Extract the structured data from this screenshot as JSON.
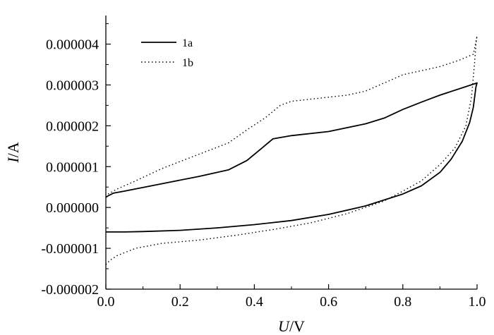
{
  "chart_data": {
    "type": "line",
    "title": "",
    "xlabel": {
      "var": "U",
      "unit": "/V"
    },
    "ylabel": {
      "var": "I",
      "unit": "/A"
    },
    "xlim": [
      0.0,
      1.0
    ],
    "ylim": [
      -2e-06,
      4.7e-06
    ],
    "xticks": [
      0.0,
      0.2,
      0.4,
      0.6,
      0.8,
      1.0
    ],
    "xtick_labels": [
      "0.0",
      "0.2",
      "0.4",
      "0.6",
      "0.8",
      "1.0"
    ],
    "yticks": [
      -2e-06,
      -1e-06,
      0.0,
      1e-06,
      2e-06,
      3e-06,
      4e-06
    ],
    "ytick_labels": [
      "-0.000002",
      "-0.000001",
      "0.000000",
      "0.000001",
      "0.000002",
      "0.000003",
      "0.000004"
    ],
    "grid": false,
    "legend_position": "top-left",
    "series": [
      {
        "name": "1a",
        "style": "solid",
        "color": "#000000",
        "points": [
          [
            0.0,
            -6e-07
          ],
          [
            0.05,
            -6e-07
          ],
          [
            0.1,
            -5.9e-07
          ],
          [
            0.2,
            -5.6e-07
          ],
          [
            0.3,
            -5e-07
          ],
          [
            0.4,
            -4.2e-07
          ],
          [
            0.5,
            -3.2e-07
          ],
          [
            0.6,
            -1.7e-07
          ],
          [
            0.7,
            4e-08
          ],
          [
            0.8,
            3.3e-07
          ],
          [
            0.85,
            5.3e-07
          ],
          [
            0.9,
            8.6e-07
          ],
          [
            0.93,
            1.18e-06
          ],
          [
            0.96,
            1.62e-06
          ],
          [
            0.98,
            2.08e-06
          ],
          [
            0.99,
            2.45e-06
          ],
          [
            0.997,
            2.95e-06
          ],
          [
            1.0,
            3.05e-06
          ],
          [
            0.9,
            2.75e-06
          ],
          [
            0.85,
            2.58e-06
          ],
          [
            0.8,
            2.4e-06
          ],
          [
            0.75,
            2.19e-06
          ],
          [
            0.7,
            2.05e-06
          ],
          [
            0.6,
            1.86e-06
          ],
          [
            0.5,
            1.76e-06
          ],
          [
            0.45,
            1.68e-06
          ],
          [
            0.42,
            1.45e-06
          ],
          [
            0.38,
            1.15e-06
          ],
          [
            0.33,
            9.2e-07
          ],
          [
            0.25,
            7.6e-07
          ],
          [
            0.15,
            5.8e-07
          ],
          [
            0.05,
            4e-07
          ],
          [
            0.02,
            3.5e-07
          ],
          [
            0.005,
            2.8e-07
          ],
          [
            0.0,
            2.5e-07
          ]
        ]
      },
      {
        "name": "1b",
        "style": "dotted",
        "color": "#000000",
        "points": [
          [
            0.0,
            -1.4e-06
          ],
          [
            0.01,
            -1.3e-06
          ],
          [
            0.03,
            -1.18e-06
          ],
          [
            0.08,
            -1e-06
          ],
          [
            0.15,
            -8.8e-07
          ],
          [
            0.25,
            -8e-07
          ],
          [
            0.35,
            -6.8e-07
          ],
          [
            0.45,
            -5.4e-07
          ],
          [
            0.55,
            -3.8e-07
          ],
          [
            0.65,
            -1.5e-07
          ],
          [
            0.75,
            1.6e-07
          ],
          [
            0.8,
            4e-07
          ],
          [
            0.85,
            6.5e-07
          ],
          [
            0.9,
            1.05e-06
          ],
          [
            0.94,
            1.45e-06
          ],
          [
            0.97,
            2e-06
          ],
          [
            0.985,
            2.7e-06
          ],
          [
            0.993,
            3.5e-06
          ],
          [
            0.998,
            4.1e-06
          ],
          [
            1.0,
            4.2e-06
          ],
          [
            0.99,
            3.75e-06
          ],
          [
            0.95,
            3.6e-06
          ],
          [
            0.9,
            3.45e-06
          ],
          [
            0.8,
            3.25e-06
          ],
          [
            0.75,
            3.05e-06
          ],
          [
            0.7,
            2.85e-06
          ],
          [
            0.65,
            2.75e-06
          ],
          [
            0.55,
            2.65e-06
          ],
          [
            0.5,
            2.6e-06
          ],
          [
            0.47,
            2.5e-06
          ],
          [
            0.43,
            2.2e-06
          ],
          [
            0.38,
            1.9e-06
          ],
          [
            0.33,
            1.58e-06
          ],
          [
            0.25,
            1.3e-06
          ],
          [
            0.15,
            9.5e-07
          ],
          [
            0.08,
            6.5e-07
          ],
          [
            0.03,
            4.5e-07
          ],
          [
            0.0,
            3e-07
          ]
        ]
      }
    ]
  }
}
